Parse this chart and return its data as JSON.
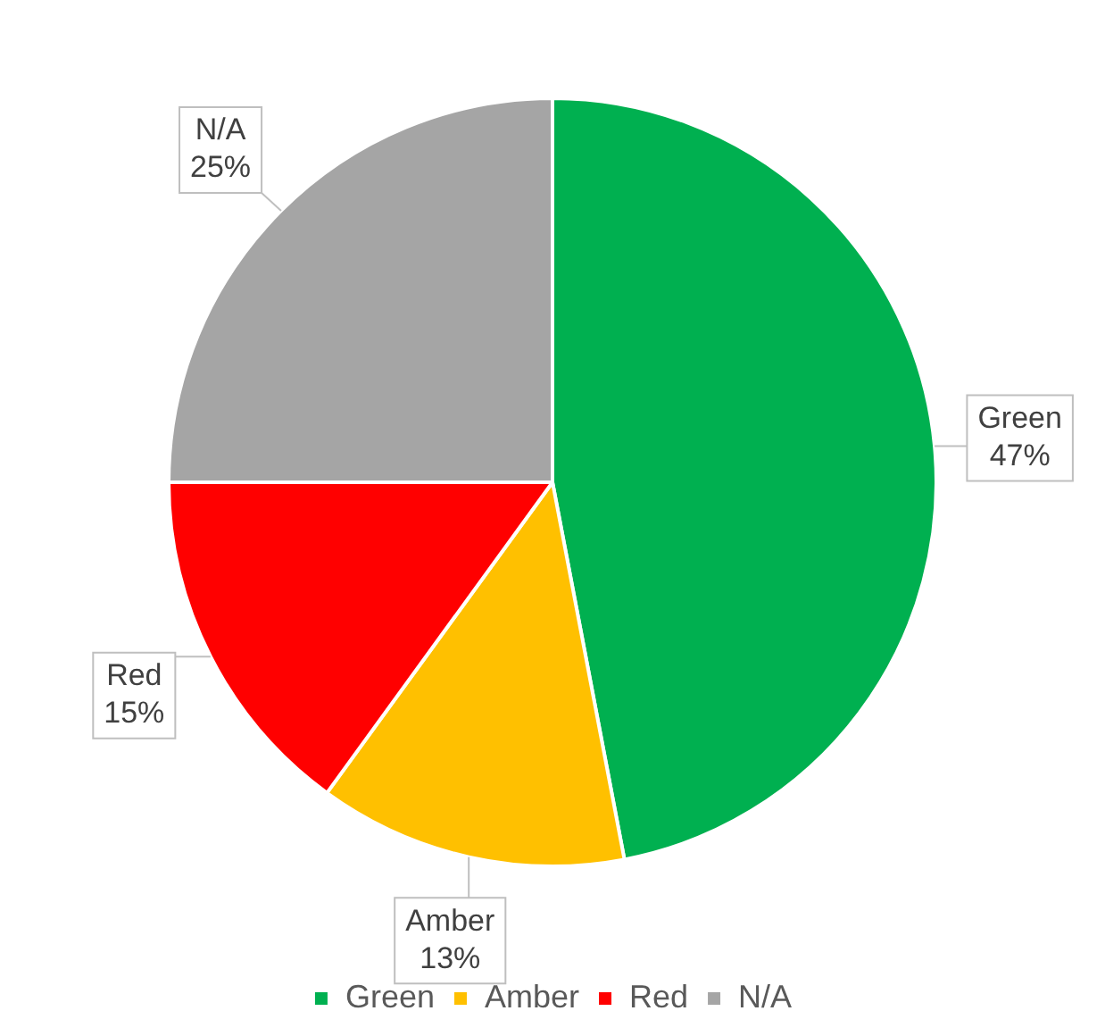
{
  "chart_data": {
    "type": "pie",
    "categories": [
      "Green",
      "Amber",
      "Red",
      "N/A"
    ],
    "values": [
      47,
      13,
      15,
      25
    ],
    "colors": [
      "#00b050",
      "#ffc000",
      "#ff0000",
      "#a5a5a5"
    ],
    "value_labels": [
      "47%",
      "13%",
      "15%",
      "25%"
    ],
    "legend": "bottom"
  }
}
